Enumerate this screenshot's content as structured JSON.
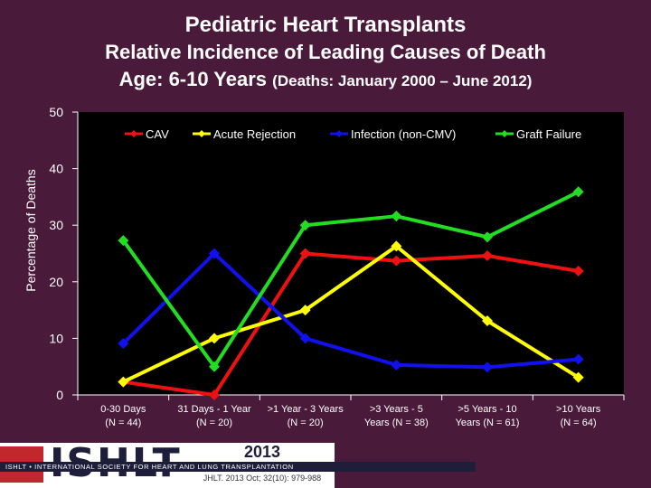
{
  "title": "Pediatric Heart Transplants",
  "subtitle": "Relative Incidence of Leading Causes of Death",
  "age_line_main": "Age: 6-10 Years",
  "age_line_sub": "(Deaths: January 2000 – June 2012)",
  "footer": {
    "logo": "ISHLT",
    "band_text": "ISHLT • INTERNATIONAL SOCIETY FOR HEART AND LUNG TRANSPLANTATION",
    "year": "2013",
    "citation": "JHLT. 2013 Oct; 32(10): 979-988"
  },
  "chart_data": {
    "type": "line",
    "ylabel": "Percentage of Deaths",
    "ylim": [
      0,
      50
    ],
    "yticks": [
      0,
      10,
      20,
      30,
      40,
      50
    ],
    "legend_position": "top",
    "categories": [
      [
        "0-30 Days",
        "(N = 44)"
      ],
      [
        "31 Days - 1 Year",
        "(N = 20)"
      ],
      [
        ">1 Year - 3 Years",
        "(N = 20)"
      ],
      [
        ">3 Years - 5",
        "Years (N = 38)"
      ],
      [
        ">5 Years - 10",
        "Years (N = 61)"
      ],
      [
        ">10 Years",
        "(N = 64)"
      ]
    ],
    "series": [
      {
        "name": "CAV",
        "color": "#ee1111",
        "values": [
          2.3,
          0,
          25,
          23.7,
          24.6,
          21.9
        ]
      },
      {
        "name": "Acute Rejection",
        "color": "#ffff00",
        "values": [
          2.3,
          10,
          15,
          26.3,
          13.1,
          3.1
        ]
      },
      {
        "name": "Infection (non-CMV)",
        "color": "#1111ee",
        "values": [
          9.1,
          25,
          10,
          5.3,
          4.9,
          6.3
        ]
      },
      {
        "name": "Graft Failure",
        "color": "#22dd22",
        "values": [
          27.3,
          5,
          30,
          31.6,
          27.9,
          35.9
        ]
      }
    ]
  }
}
